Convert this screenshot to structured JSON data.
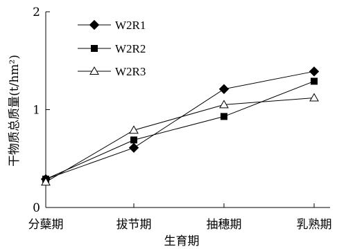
{
  "chart_data": {
    "type": "line",
    "title": "",
    "xlabel": "生育期",
    "ylabel": "干物质总质量(t/hm²)",
    "categories": [
      "分蘖期",
      "拔节期",
      "抽穗期",
      "乳熟期"
    ],
    "ylim": [
      0,
      2
    ],
    "yticks": [
      "0",
      "1",
      "2"
    ],
    "grid": false,
    "legend_position": "top-left",
    "series": [
      {
        "name": "W2R1",
        "marker": "diamond-filled",
        "values": [
          0.29,
          0.61,
          1.21,
          1.39
        ]
      },
      {
        "name": "W2R2",
        "marker": "square-filled",
        "values": [
          0.29,
          0.69,
          0.93,
          1.29
        ]
      },
      {
        "name": "W2R3",
        "marker": "triangle-open",
        "values": [
          0.26,
          0.79,
          1.05,
          1.12
        ]
      }
    ],
    "colors": {
      "line": "#000000",
      "background": "#ffffff"
    }
  }
}
